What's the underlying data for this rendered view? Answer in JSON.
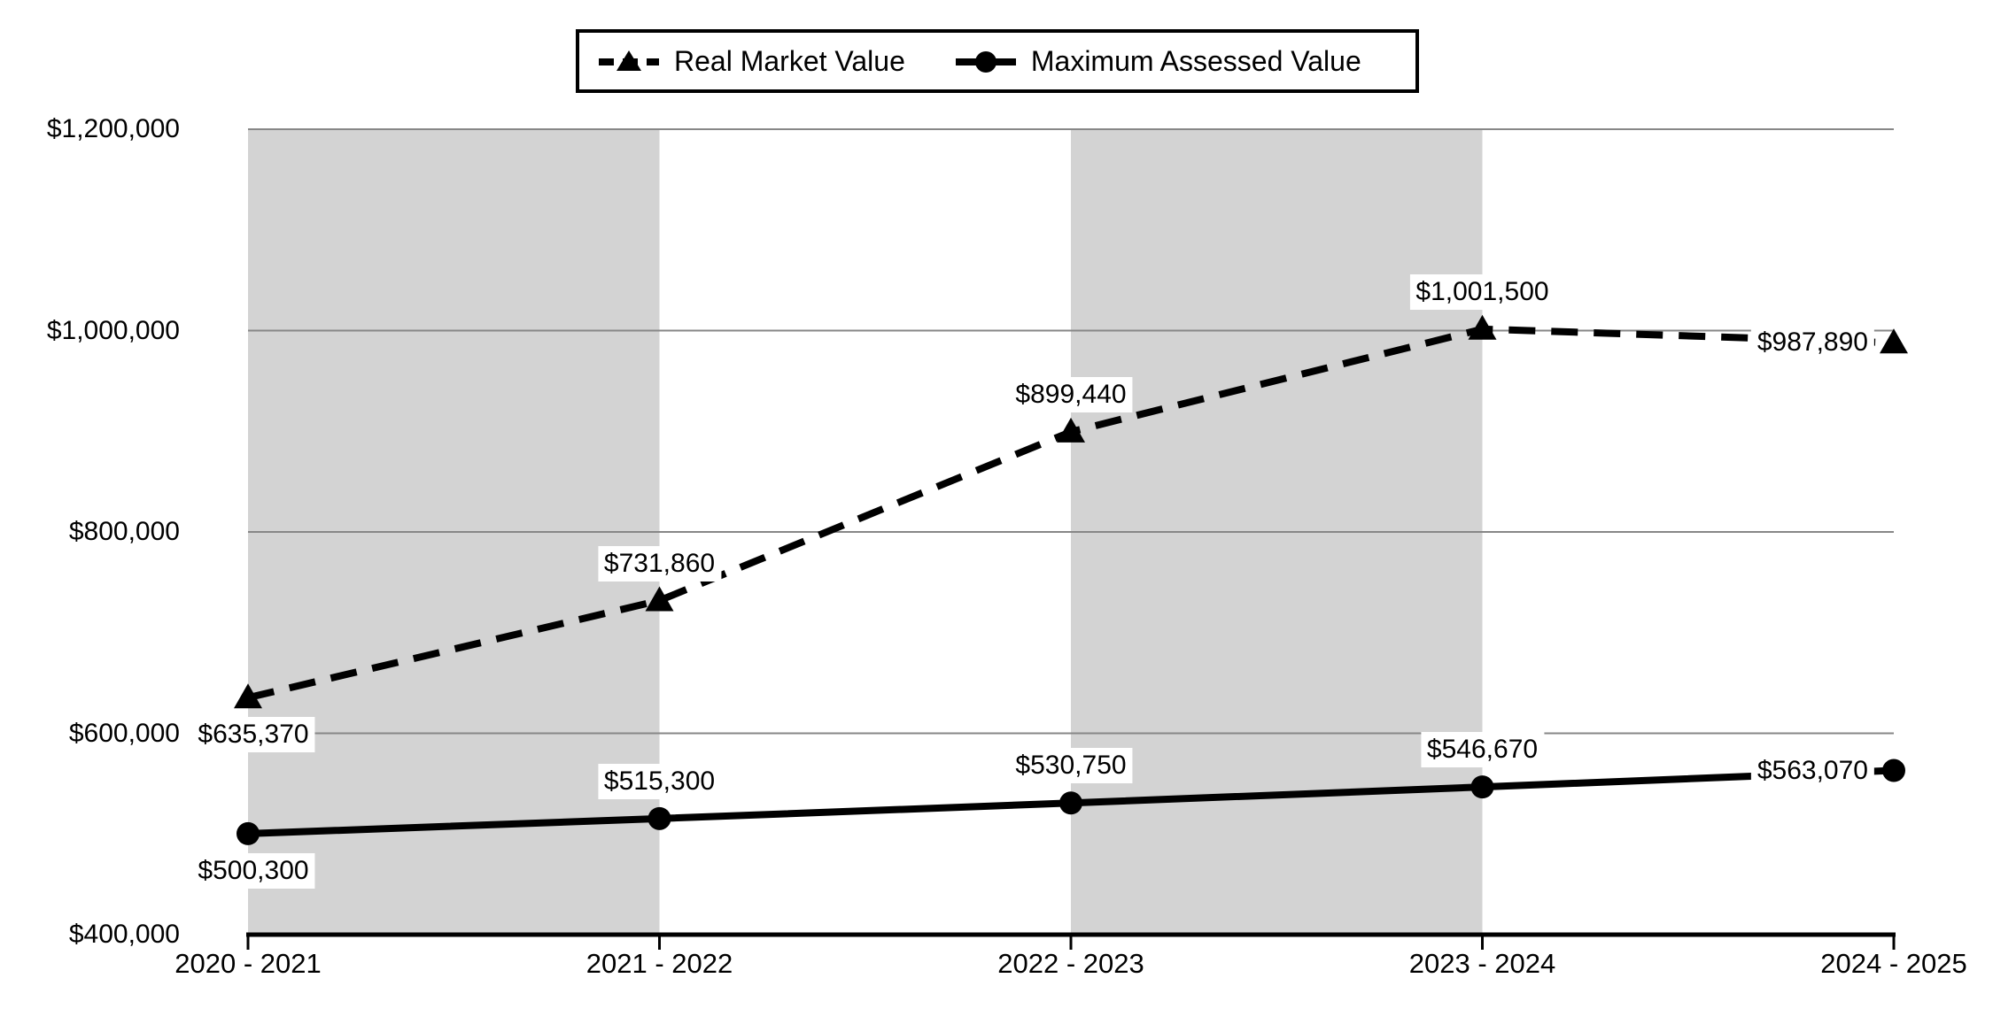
{
  "chart_data": {
    "type": "line",
    "title": "",
    "categories": [
      "2020 - 2021",
      "2021 - 2022",
      "2022 - 2023",
      "2023 - 2024",
      "2024 - 2025"
    ],
    "series": [
      {
        "name": "Real Market Value",
        "line_style": "dashed",
        "marker": "triangle",
        "values": [
          635370,
          731860,
          899440,
          1001500,
          987890
        ],
        "data_labels": [
          "$635,370",
          "$731,860",
          "$899,440",
          "$1,001,500",
          "$987,890"
        ],
        "label_placement": [
          "below",
          "above",
          "above",
          "above",
          "left"
        ]
      },
      {
        "name": "Maximum Assessed Value",
        "line_style": "solid",
        "marker": "circle",
        "values": [
          500300,
          515300,
          530750,
          546670,
          563070
        ],
        "data_labels": [
          "$500,300",
          "$515,300",
          "$530,750",
          "$546,670",
          "$563,070"
        ],
        "label_placement": [
          "below",
          "above",
          "above",
          "above",
          "left"
        ]
      }
    ],
    "ylim": [
      400000,
      1200000
    ],
    "ytick_values": [
      400000,
      600000,
      800000,
      1000000,
      1200000
    ],
    "ytick_labels": [
      "$400,000",
      "$600,000",
      "$800,000",
      "$1,000,000",
      "$1,200,000"
    ],
    "grid": "horizontal",
    "legend_position": "top-center",
    "shaded_band_category_ranges": [
      [
        0,
        1
      ],
      [
        2,
        3
      ]
    ],
    "colors": {
      "series_line": "#000000",
      "band_fill": "#d3d3d3",
      "gridline": "#878787",
      "axis_line": "#000000",
      "label_background": "#ffffff",
      "legend_border": "#000000",
      "background": "#ffffff",
      "text": "#000000"
    }
  }
}
